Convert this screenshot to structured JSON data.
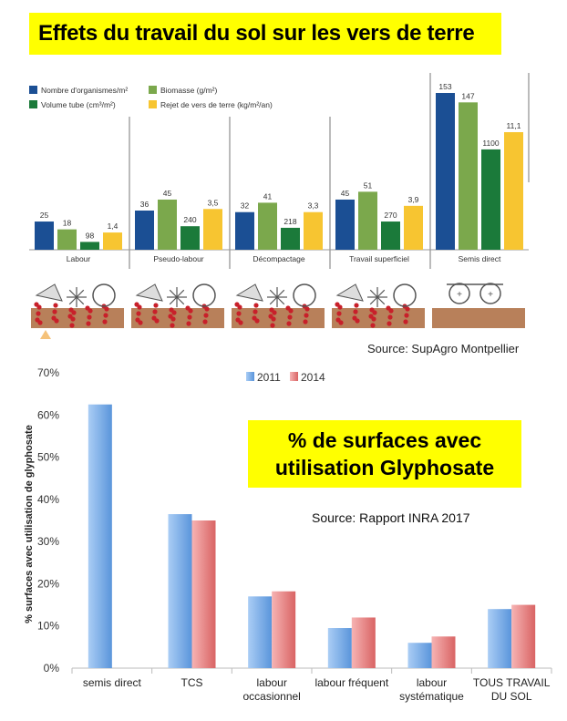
{
  "title": "Effets du travail du sol sur les vers de terre",
  "source_top": "Source: SupAgro Montpellier",
  "glyphosate_title_line1": "% de surfaces avec",
  "glyphosate_title_line2": "utilisation Glyphosate",
  "source_bottom": "Source: Rapport INRA 2017",
  "chart_data": [
    {
      "type": "bar",
      "title": "Effets du travail du sol sur les vers de terre",
      "categories": [
        "Labour",
        "Pseudo-labour",
        "Décompactage",
        "Travail superficiel",
        "Semis direct"
      ],
      "series": [
        {
          "name": "Nombre d'organismes/m²",
          "color": "#1b4f94",
          "values": [
            25,
            36,
            32,
            45,
            153
          ],
          "labels": [
            "25",
            "36",
            "32",
            "45",
            "153"
          ]
        },
        {
          "name": "Biomasse (g/m²)",
          "color": "#7ba84c",
          "values": [
            18,
            45,
            41,
            51,
            147
          ],
          "labels": [
            "18",
            "45",
            "41",
            "51",
            "147"
          ]
        },
        {
          "name": "Volume tube (cm³/m²)",
          "color": "#1b7a3a",
          "values": [
            98,
            240,
            218,
            270,
            1100
          ],
          "labels": [
            "98",
            "240",
            "218",
            "270",
            "1100"
          ]
        },
        {
          "name": "Rejet de vers de terre (kg/m²/an)",
          "color": "#f7c531",
          "values": [
            1.4,
            3.5,
            3.3,
            3.9,
            11.1
          ],
          "labels": [
            "1,4",
            "3,5",
            "3,3",
            "3,9",
            "11,1"
          ]
        }
      ],
      "bar_heights_relative": {
        "note": "bars drawn on independent scales; relative height per series",
        "s0": [
          0.18,
          0.25,
          0.24,
          0.32,
          1.0
        ],
        "s1": [
          0.13,
          0.32,
          0.3,
          0.37,
          0.94
        ],
        "s2": [
          0.05,
          0.15,
          0.14,
          0.18,
          0.64
        ],
        "s3": [
          0.11,
          0.26,
          0.24,
          0.28,
          0.75
        ]
      },
      "source": "Source: SupAgro Montpellier"
    },
    {
      "type": "bar",
      "title": "% de surfaces avec utilisation Glyphosate",
      "ylabel": "% surfaces avec utilisation de glyphosate",
      "ylim": [
        0,
        70
      ],
      "yticks": [
        "0%",
        "10%",
        "20%",
        "30%",
        "40%",
        "50%",
        "60%",
        "70%"
      ],
      "categories": [
        [
          "semis direct"
        ],
        [
          "TCS"
        ],
        [
          "labour",
          "occasionnel"
        ],
        [
          "labour fréquent"
        ],
        [
          "labour",
          "systématique"
        ],
        [
          "TOUS TRAVAIL",
          "DU SOL"
        ]
      ],
      "series": [
        {
          "name": "2011",
          "color": "#6ea7e4",
          "values": [
            62.5,
            36.5,
            17,
            9.5,
            6,
            14
          ]
        },
        {
          "name": "2014",
          "color": "#e87b7b",
          "values": [
            null,
            35,
            18.2,
            12,
            7.5,
            15
          ]
        }
      ],
      "source": "Source: Rapport INRA 2017"
    }
  ]
}
